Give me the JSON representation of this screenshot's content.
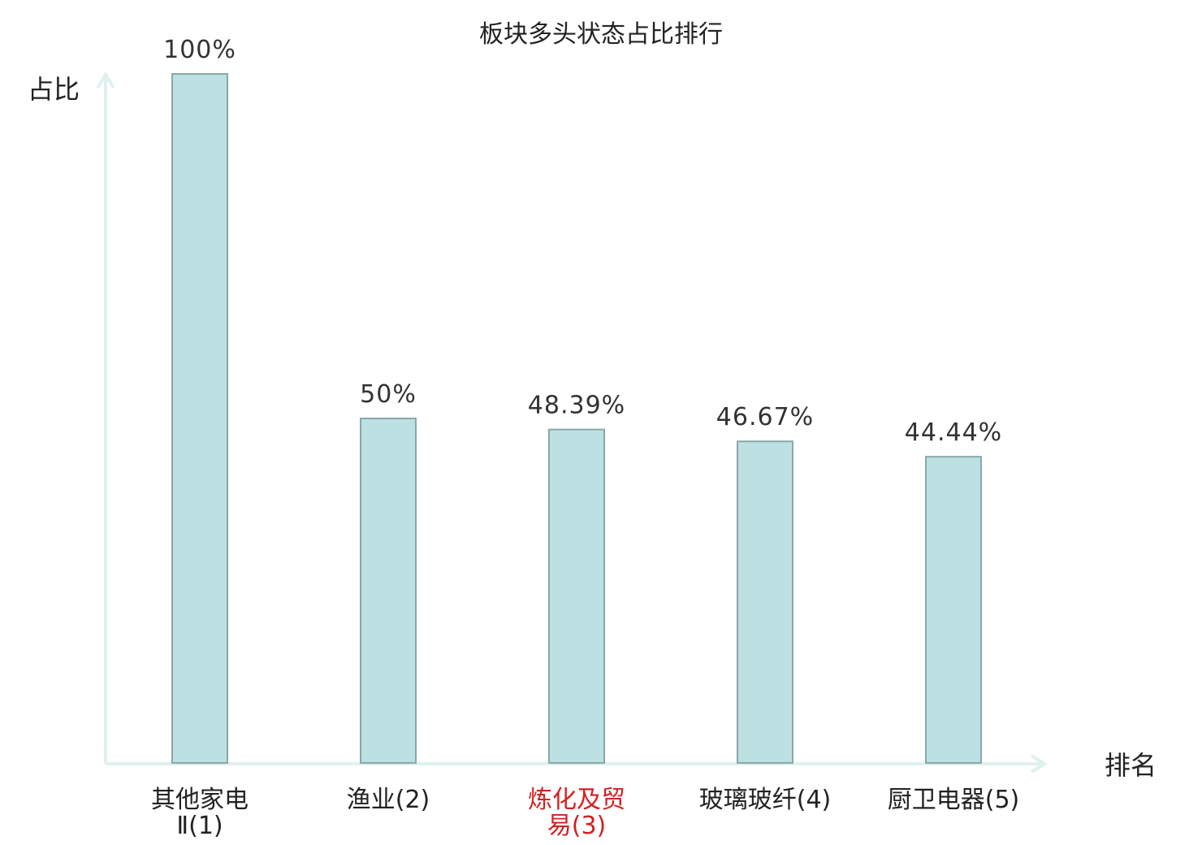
{
  "chart_data": {
    "type": "bar",
    "title": "板块多头状态占比排行",
    "xlabel": "排名",
    "ylabel": "占比",
    "ylim": [
      0,
      100
    ],
    "grid": false,
    "legend": "none",
    "categories": [
      {
        "lines": [
          "其他家电",
          "Ⅱ(1)"
        ],
        "highlight": false
      },
      {
        "lines": [
          "渔业(2)"
        ],
        "highlight": false
      },
      {
        "lines": [
          "炼化及贸",
          "易(3)"
        ],
        "highlight": true
      },
      {
        "lines": [
          "玻璃玻纤(4)"
        ],
        "highlight": false
      },
      {
        "lines": [
          "厨卫电器(5)"
        ],
        "highlight": false
      }
    ],
    "values": [
      100,
      50,
      48.39,
      46.67,
      44.44
    ],
    "value_labels": [
      "100%",
      "50%",
      "48.39%",
      "46.67%",
      "44.44%"
    ],
    "colors": {
      "bar_fill": "#bde0e2",
      "bar_stroke": "#8aa8a8",
      "axis": "#dff1ef",
      "highlight_text": "#d42020"
    }
  }
}
